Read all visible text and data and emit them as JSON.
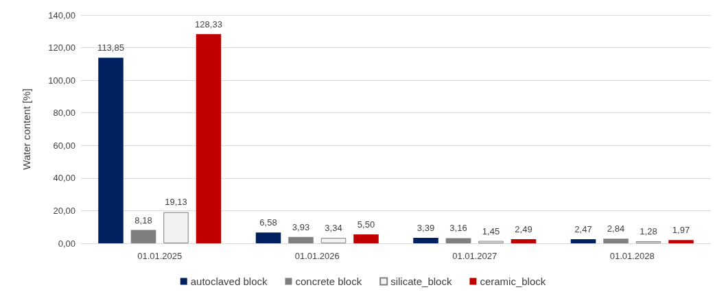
{
  "chart_data": {
    "type": "bar",
    "ylabel": "Water content [%]",
    "categories": [
      "01.01.2025",
      "01.01.2026",
      "01.01.2027",
      "01.01.2028"
    ],
    "series": [
      {
        "name": "autoclaved block",
        "color": "#002060",
        "values": [
          113.85,
          6.58,
          3.39,
          2.47
        ],
        "value_labels": [
          "113,85",
          "6,58",
          "3,39",
          "2,47"
        ]
      },
      {
        "name": "concrete block",
        "color": "#7f7f7f",
        "values": [
          8.18,
          3.93,
          3.16,
          2.84
        ],
        "value_labels": [
          "8,18",
          "3,93",
          "3,16",
          "2,84"
        ]
      },
      {
        "name": "silicate_block",
        "color": "#f2f2f2",
        "values": [
          19.13,
          3.34,
          1.45,
          1.28
        ],
        "value_labels": [
          "19,13",
          "3,34",
          "1,45",
          "1,28"
        ]
      },
      {
        "name": "ceramic_block",
        "color": "#c00000",
        "values": [
          128.33,
          5.5,
          2.49,
          1.97
        ],
        "value_labels": [
          "128,33",
          "5,50",
          "2,49",
          "1,97"
        ]
      }
    ],
    "ylim": [
      0,
      140
    ],
    "yticks": [
      {
        "value": 0,
        "label": "0,00"
      },
      {
        "value": 20,
        "label": "20,00"
      },
      {
        "value": 40,
        "label": "40,00"
      },
      {
        "value": 60,
        "label": "60,00"
      },
      {
        "value": 80,
        "label": "80,00"
      },
      {
        "value": 100,
        "label": "100,00"
      },
      {
        "value": 120,
        "label": "120,00"
      },
      {
        "value": 140,
        "label": "140,00"
      }
    ],
    "grid": "y",
    "legend": "bottom"
  }
}
